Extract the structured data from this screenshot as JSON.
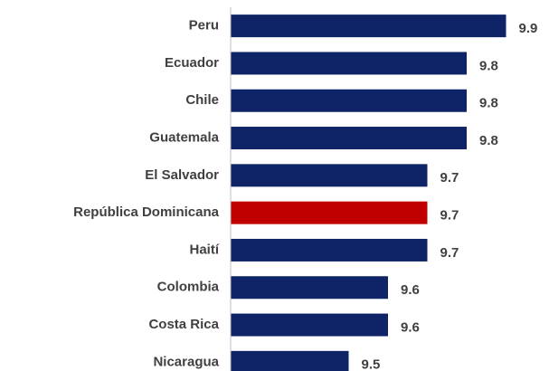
{
  "chart_data": {
    "type": "bar",
    "orientation": "horizontal",
    "categories": [
      "Peru",
      "Ecuador",
      "Chile",
      "Guatemala",
      "El Salvador",
      "República Dominicana",
      "Haití",
      "Colombia",
      "Costa Rica",
      "Nicaragua"
    ],
    "values": [
      9.9,
      9.8,
      9.8,
      9.8,
      9.7,
      9.7,
      9.7,
      9.6,
      9.6,
      9.5
    ],
    "colors": [
      "#0e2467",
      "#0e2467",
      "#0e2467",
      "#0e2467",
      "#0e2467",
      "#c00000",
      "#0e2467",
      "#0e2467",
      "#0e2467",
      "#0e2467"
    ],
    "xlim": [
      9.2,
      10.0
    ]
  }
}
